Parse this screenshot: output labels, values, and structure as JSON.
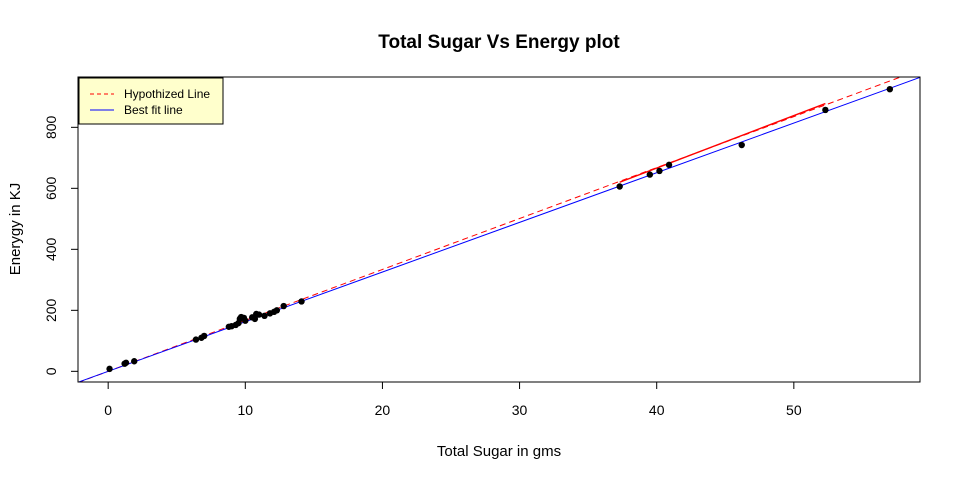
{
  "chart_data": {
    "type": "scatter",
    "title": "Total Sugar Vs Energy plot",
    "xlabel": "Total Sugar in gms",
    "ylabel": "Enerygy in KJ",
    "xlim": [
      -2.2,
      59.2
    ],
    "ylim": [
      -35,
      965
    ],
    "xticks": [
      0,
      10,
      20,
      30,
      40,
      50
    ],
    "yticks": [
      0,
      200,
      400,
      600,
      800
    ],
    "grid": false,
    "legend_position": "top-left",
    "points": [
      {
        "x": 0.1,
        "y": 8
      },
      {
        "x": 1.2,
        "y": 25
      },
      {
        "x": 1.3,
        "y": 28
      },
      {
        "x": 1.9,
        "y": 33
      },
      {
        "x": 6.4,
        "y": 104
      },
      {
        "x": 6.8,
        "y": 110
      },
      {
        "x": 7.0,
        "y": 116
      },
      {
        "x": 8.8,
        "y": 146
      },
      {
        "x": 9.0,
        "y": 148
      },
      {
        "x": 9.3,
        "y": 152
      },
      {
        "x": 9.5,
        "y": 158
      },
      {
        "x": 9.6,
        "y": 172
      },
      {
        "x": 9.7,
        "y": 178
      },
      {
        "x": 9.9,
        "y": 175
      },
      {
        "x": 10.0,
        "y": 166
      },
      {
        "x": 10.5,
        "y": 177
      },
      {
        "x": 10.7,
        "y": 172
      },
      {
        "x": 10.8,
        "y": 188
      },
      {
        "x": 11.0,
        "y": 186
      },
      {
        "x": 11.4,
        "y": 182
      },
      {
        "x": 11.8,
        "y": 190
      },
      {
        "x": 12.1,
        "y": 195
      },
      {
        "x": 12.3,
        "y": 200
      },
      {
        "x": 12.8,
        "y": 214
      },
      {
        "x": 14.1,
        "y": 229
      },
      {
        "x": 37.3,
        "y": 606
      },
      {
        "x": 39.5,
        "y": 645
      },
      {
        "x": 40.2,
        "y": 657
      },
      {
        "x": 40.9,
        "y": 677
      },
      {
        "x": 46.2,
        "y": 742
      },
      {
        "x": 52.3,
        "y": 857
      },
      {
        "x": 57.0,
        "y": 925
      }
    ],
    "lines": [
      {
        "name": "Hypothized Line",
        "color": "#ff0000",
        "style": "dashed",
        "slope": 16.7,
        "intercept": 0
      },
      {
        "name": "Best fit line",
        "color": "#0000ff",
        "style": "solid",
        "slope": 16.28,
        "intercept": 0
      }
    ],
    "segments": [
      {
        "color": "#ff0000",
        "x": [
          37.3,
          52.3
        ],
        "y": [
          620,
          878
        ]
      }
    ],
    "point_color": "#000000"
  }
}
